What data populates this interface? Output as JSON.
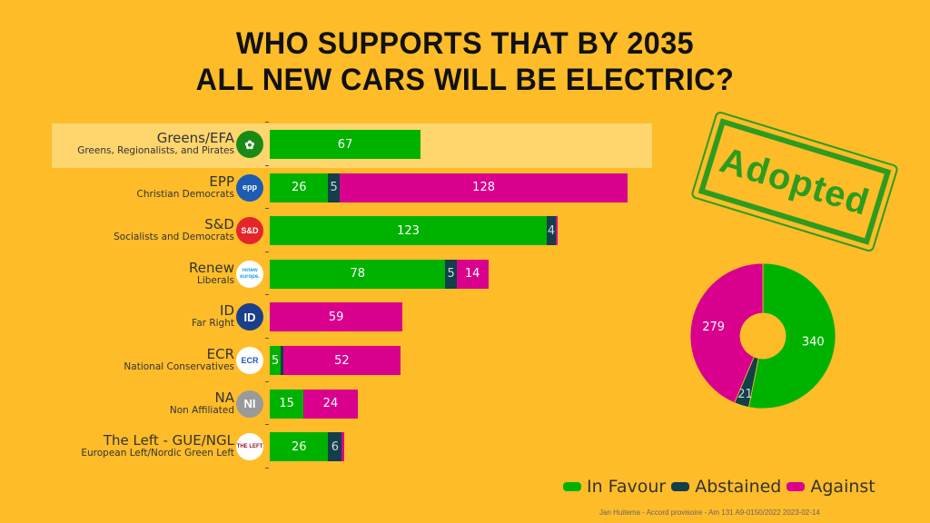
{
  "title": {
    "line1": "WHO SUPPORTS THAT BY 2035",
    "line2": "ALL NEW CARS WILL BE ELECTRIC?"
  },
  "stamp_text": "Adopted",
  "colors": {
    "background": "#FEBC29",
    "in_favour": "#00B200",
    "abstained": "#123F4B",
    "against": "#D9008D",
    "highlight": "#FFD56E",
    "stamp": "#2E9B1E"
  },
  "chart_data": [
    {
      "type": "bar",
      "orientation": "horizontal",
      "stacked": true,
      "categories": [
        "Greens/EFA",
        "EPP",
        "S&D",
        "Renew",
        "ID",
        "ECR",
        "NA",
        "The Left - GUE/NGL"
      ],
      "subtitles": [
        "Greens, Regionalists, and Pirates",
        "Christian Democrats",
        "Socialists and Democrats",
        "Liberals",
        "Far Right",
        "National Conservatives",
        "Non Affiliated",
        "European Left/Nordic Green Left"
      ],
      "highlighted": "Greens/EFA",
      "series": [
        {
          "name": "In Favour",
          "values": [
            67,
            26,
            123,
            78,
            0,
            5,
            15,
            26
          ]
        },
        {
          "name": "Abstained",
          "values": [
            0,
            5,
            4,
            5,
            0,
            1,
            0,
            6
          ]
        },
        {
          "name": "Against",
          "values": [
            0,
            128,
            1,
            14,
            59,
            52,
            24,
            1
          ]
        }
      ],
      "data_labels": [
        [
          "67",
          "",
          ""
        ],
        [
          "26",
          "5",
          "128"
        ],
        [
          "123",
          "4",
          ""
        ],
        [
          "78",
          "5",
          "14"
        ],
        [
          "0",
          "",
          "59"
        ],
        [
          "5",
          "",
          "52"
        ],
        [
          "15",
          "",
          "24"
        ],
        [
          "26",
          "6",
          ""
        ]
      ],
      "xlim": [
        0,
        170
      ],
      "grid": false
    },
    {
      "type": "pie",
      "donut": true,
      "labels": [
        "In Favour",
        "Abstained",
        "Against"
      ],
      "values": [
        340,
        21,
        279
      ],
      "start": "top",
      "direction": "clockwise"
    }
  ],
  "legend": {
    "placement": "bottom-right",
    "items": [
      {
        "label": "In Favour",
        "color": "#00B200"
      },
      {
        "label": "Abstained",
        "color": "#123F4B"
      },
      {
        "label": "Against",
        "color": "#D9008D"
      }
    ]
  },
  "logos": [
    {
      "party": "Greens/EFA",
      "text": "✿",
      "bg": "#1A8A17",
      "fg": "#ffffff"
    },
    {
      "party": "EPP",
      "text": "epp",
      "bg": "#1E5CB3",
      "fg": "#ffffff"
    },
    {
      "party": "S&D",
      "text": "S&D",
      "bg": "#E4262A",
      "fg": "#ffffff"
    },
    {
      "party": "Renew",
      "text": "renew europe.",
      "bg": "#ffffff",
      "fg": "#1DA1E2"
    },
    {
      "party": "ID",
      "text": "ID",
      "bg": "#1C3F8A",
      "fg": "#ffffff"
    },
    {
      "party": "ECR",
      "text": "ECR",
      "bg": "#ffffff",
      "fg": "#1E5CB3"
    },
    {
      "party": "NA",
      "text": "NI",
      "bg": "#9A9A9A",
      "fg": "#ffffff"
    },
    {
      "party": "The Left - GUE/NGL",
      "text": "THE LEFT",
      "bg": "#ffffff",
      "fg": "#8E1B2E"
    }
  ],
  "source": "Jan Huitema - Accord provisoire - Am 131 A9-0150/2022 2023-02-14"
}
